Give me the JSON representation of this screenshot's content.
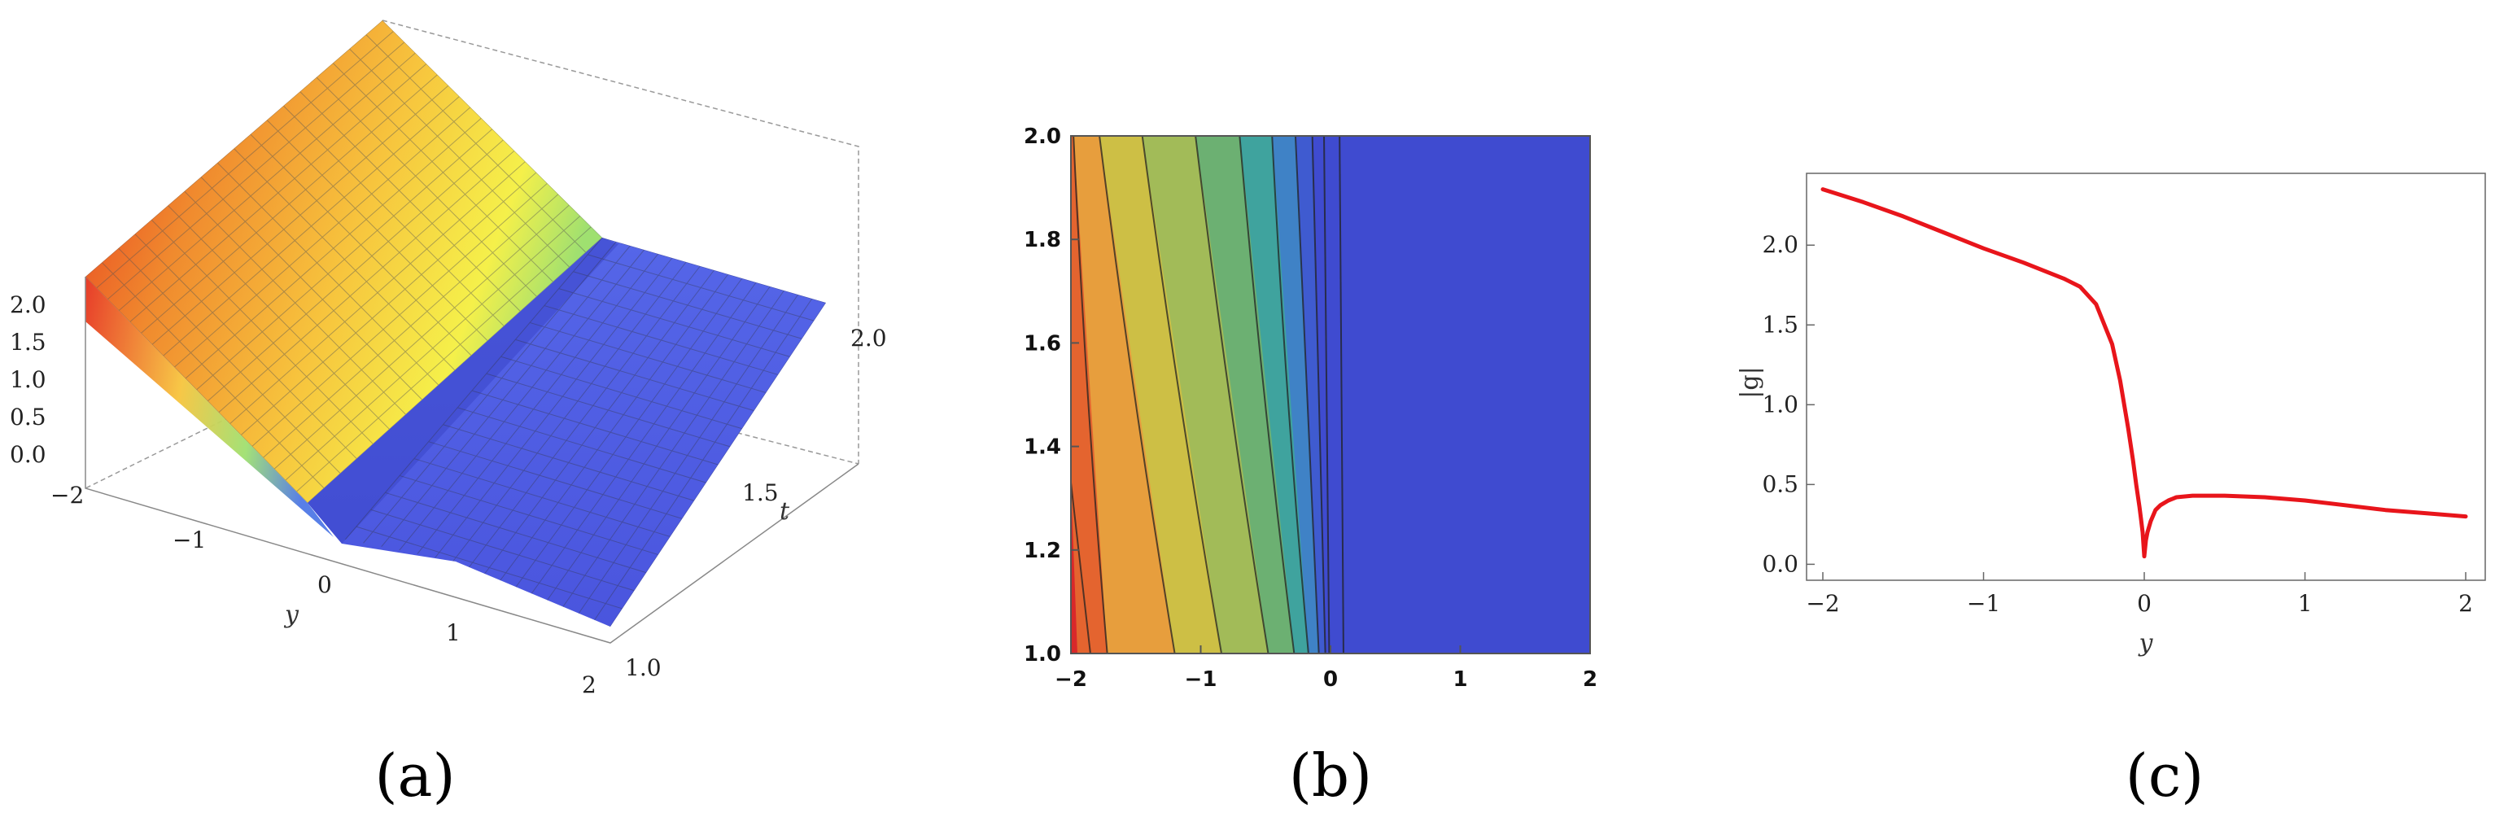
{
  "panels": {
    "a": {
      "label": "(a)"
    },
    "b": {
      "label": "(b)"
    },
    "c": {
      "label": "(c)"
    }
  },
  "chart_data": [
    {
      "id": "a",
      "type": "surface3d",
      "xlabel": "y",
      "ylabel": "t",
      "zlabel": "",
      "x_ticks": [
        "−2",
        "−1",
        "0",
        "1",
        "2"
      ],
      "y_ticks": [
        "1.0",
        "1.5",
        "2.0"
      ],
      "z_ticks": [
        "0.0",
        "0.5",
        "1.0",
        "1.5",
        "2.0"
      ],
      "xlim": [
        -2,
        2
      ],
      "ylim": [
        1,
        2
      ],
      "zlim": [
        0,
        2.2
      ],
      "colormap": [
        "#e6321e",
        "#f08a2e",
        "#f7c43d",
        "#f5f04a",
        "#9fe070",
        "#58c5c0",
        "#4f78e6",
        "#4a52dc"
      ]
    },
    {
      "id": "b",
      "type": "contour",
      "xlabel": "",
      "ylabel": "",
      "x_ticks": [
        "−2",
        "−1",
        "0",
        "1",
        "2"
      ],
      "y_ticks": [
        "1.0",
        "1.2",
        "1.4",
        "1.6",
        "1.8",
        "2.0"
      ],
      "xlim": [
        -2,
        2
      ],
      "ylim": [
        1,
        2
      ],
      "band_colors": [
        "#d9282a",
        "#e4642f",
        "#e79e3d",
        "#cdbf45",
        "#a2bb58",
        "#6cb072",
        "#3fa39e",
        "#3f82c6",
        "#3f5bd0",
        "#3f4bd0"
      ],
      "background_color": "#3f4bd0"
    },
    {
      "id": "c",
      "type": "line",
      "xlabel": "y",
      "ylabel": "|g|",
      "x_ticks": [
        "−2",
        "−1",
        "0",
        "1",
        "2"
      ],
      "y_ticks": [
        "0.0",
        "0.5",
        "1.0",
        "1.5",
        "2.0"
      ],
      "xlim": [
        -2,
        2
      ],
      "ylim": [
        -0.1,
        2.45
      ],
      "series": [
        {
          "color": "#e8151b",
          "x": [
            -2,
            -1.75,
            -1.5,
            -1.25,
            -1,
            -0.75,
            -0.5,
            -0.4,
            -0.3,
            -0.2,
            -0.15,
            -0.1,
            -0.07,
            -0.05,
            -0.03,
            -0.02,
            -0.01,
            0,
            0.01,
            0.02,
            0.04,
            0.07,
            0.1,
            0.15,
            0.2,
            0.3,
            0.4,
            0.5,
            0.75,
            1,
            1.25,
            1.5,
            1.75,
            2
          ],
          "y": [
            2.35,
            2.27,
            2.18,
            2.08,
            1.98,
            1.89,
            1.79,
            1.74,
            1.63,
            1.38,
            1.15,
            0.85,
            0.65,
            0.5,
            0.36,
            0.28,
            0.2,
            0.05,
            0.15,
            0.2,
            0.27,
            0.34,
            0.37,
            0.4,
            0.42,
            0.43,
            0.43,
            0.43,
            0.42,
            0.4,
            0.37,
            0.34,
            0.32,
            0.3
          ]
        }
      ]
    }
  ]
}
